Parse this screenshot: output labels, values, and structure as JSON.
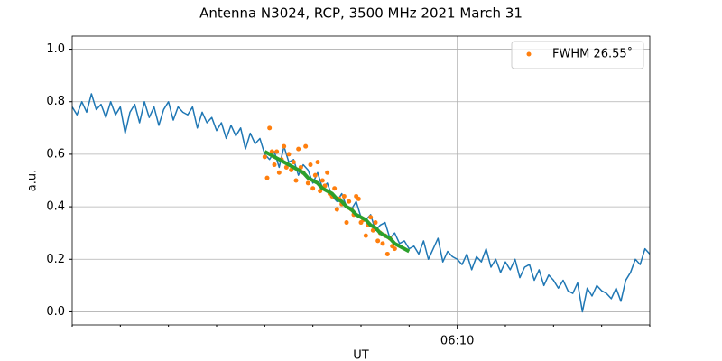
{
  "chart_data": {
    "type": "line",
    "title": "Antenna N3024, RCP, 3500 MHz 2021 March 31",
    "xlabel": "UT",
    "ylabel": "a.u.",
    "xlim": [
      362,
      374
    ],
    "ylim": [
      -0.05,
      1.05
    ],
    "xticks": [
      {
        "value": 370,
        "label": "06:10"
      }
    ],
    "xminorticks": [
      362,
      363,
      364,
      365,
      366,
      367,
      368,
      369,
      371,
      372,
      373,
      374
    ],
    "yticks": [
      {
        "value": 0,
        "label": "0.0"
      },
      0.2,
      0.4,
      0.6,
      0.8,
      {
        "value": 1,
        "label": "1.0"
      }
    ],
    "grid": true,
    "legend": "upper right",
    "series": [
      {
        "mode": "line",
        "color": "#1f77b4",
        "x": [
          362.0,
          362.1,
          362.2,
          362.3,
          362.4,
          362.5,
          362.6,
          362.7,
          362.8,
          362.9,
          363.0,
          363.1,
          363.2,
          363.3,
          363.4,
          363.5,
          363.6,
          363.7,
          363.8,
          363.9,
          364.0,
          364.1,
          364.2,
          364.3,
          364.4,
          364.5,
          364.6,
          364.7,
          364.8,
          364.9,
          365.0,
          365.1,
          365.2,
          365.3,
          365.4,
          365.5,
          365.6,
          365.7,
          365.8,
          365.9,
          366.0,
          366.1,
          366.2,
          366.3,
          366.4,
          366.5,
          366.6,
          366.7,
          366.8,
          366.9,
          367.0,
          367.1,
          367.2,
          367.3,
          367.4,
          367.5,
          367.6,
          367.7,
          367.8,
          367.9,
          368.0,
          368.1,
          368.2,
          368.3,
          368.4,
          368.5,
          368.6,
          368.7,
          368.8,
          368.9,
          369.0,
          369.1,
          369.2,
          369.3,
          369.4,
          369.5,
          369.6,
          369.7,
          369.8,
          369.9,
          370.0,
          370.1,
          370.2,
          370.3,
          370.4,
          370.5,
          370.6,
          370.7,
          370.8,
          370.9,
          371.0,
          371.1,
          371.2,
          371.3,
          371.4,
          371.5,
          371.6,
          371.7,
          371.8,
          371.9,
          372.0,
          372.1,
          372.2,
          372.3,
          372.4,
          372.5,
          372.6,
          372.7,
          372.8,
          372.9,
          373.0,
          373.1,
          373.2,
          373.3,
          373.4,
          373.5,
          373.6,
          373.7,
          373.8,
          373.9,
          374.0
        ],
        "values": [
          0.78,
          0.75,
          0.8,
          0.76,
          0.83,
          0.77,
          0.79,
          0.74,
          0.8,
          0.75,
          0.78,
          0.68,
          0.76,
          0.79,
          0.72,
          0.8,
          0.74,
          0.78,
          0.71,
          0.77,
          0.8,
          0.73,
          0.78,
          0.76,
          0.75,
          0.78,
          0.7,
          0.76,
          0.72,
          0.74,
          0.69,
          0.72,
          0.66,
          0.71,
          0.67,
          0.7,
          0.62,
          0.68,
          0.64,
          0.66,
          0.6,
          0.58,
          0.61,
          0.55,
          0.63,
          0.57,
          0.58,
          0.52,
          0.56,
          0.54,
          0.49,
          0.53,
          0.47,
          0.49,
          0.44,
          0.42,
          0.45,
          0.4,
          0.39,
          0.42,
          0.36,
          0.35,
          0.37,
          0.31,
          0.33,
          0.34,
          0.28,
          0.3,
          0.26,
          0.27,
          0.24,
          0.25,
          0.22,
          0.27,
          0.2,
          0.24,
          0.28,
          0.19,
          0.23,
          0.21,
          0.2,
          0.18,
          0.22,
          0.16,
          0.21,
          0.19,
          0.24,
          0.17,
          0.2,
          0.15,
          0.19,
          0.16,
          0.2,
          0.13,
          0.17,
          0.18,
          0.12,
          0.16,
          0.1,
          0.14,
          0.12,
          0.09,
          0.12,
          0.08,
          0.07,
          0.11,
          0.0,
          0.09,
          0.06,
          0.1,
          0.08,
          0.07,
          0.05,
          0.09,
          0.04,
          0.12,
          0.15,
          0.2,
          0.18,
          0.24,
          0.22
        ]
      },
      {
        "mode": "markers",
        "color": "#ff7f0e",
        "name": "FWHM 26.55˚",
        "x": [
          366.0,
          366.05,
          366.1,
          366.15,
          366.2,
          366.25,
          366.3,
          366.35,
          366.4,
          366.45,
          366.5,
          366.55,
          366.6,
          366.65,
          366.7,
          366.75,
          366.8,
          366.85,
          366.9,
          366.95,
          367.0,
          367.05,
          367.1,
          367.15,
          367.2,
          367.25,
          367.3,
          367.35,
          367.4,
          367.45,
          367.5,
          367.55,
          367.6,
          367.65,
          367.7,
          367.75,
          367.8,
          367.85,
          367.9,
          367.95,
          368.0,
          368.05,
          368.1,
          368.15,
          368.2,
          368.25,
          368.3,
          368.35,
          368.4,
          368.45,
          368.5,
          368.55,
          368.6,
          368.65,
          368.7
        ],
        "values": [
          0.59,
          0.51,
          0.7,
          0.61,
          0.56,
          0.61,
          0.53,
          0.58,
          0.63,
          0.55,
          0.6,
          0.54,
          0.57,
          0.5,
          0.62,
          0.55,
          0.53,
          0.63,
          0.49,
          0.56,
          0.47,
          0.52,
          0.57,
          0.46,
          0.5,
          0.48,
          0.53,
          0.45,
          0.44,
          0.47,
          0.39,
          0.43,
          0.41,
          0.44,
          0.34,
          0.42,
          0.39,
          0.37,
          0.44,
          0.43,
          0.34,
          0.35,
          0.29,
          0.33,
          0.36,
          0.31,
          0.34,
          0.27,
          0.3,
          0.26,
          0.29,
          0.22,
          0.28,
          0.25,
          0.24
        ]
      },
      {
        "mode": "thick-line",
        "color": "#2ca02c",
        "x": [
          366.0,
          366.1,
          366.2,
          366.3,
          366.4,
          366.5,
          366.6,
          366.7,
          366.8,
          366.9,
          367.0,
          367.1,
          367.2,
          367.3,
          367.4,
          367.5,
          367.6,
          367.7,
          367.8,
          367.9,
          368.0,
          368.1,
          368.2,
          368.3,
          368.4,
          368.5,
          368.6,
          368.7,
          368.8,
          368.9,
          369.0
        ],
        "values": [
          0.61,
          0.6,
          0.59,
          0.58,
          0.57,
          0.56,
          0.55,
          0.54,
          0.53,
          0.51,
          0.5,
          0.49,
          0.47,
          0.46,
          0.45,
          0.43,
          0.42,
          0.4,
          0.39,
          0.37,
          0.36,
          0.35,
          0.33,
          0.32,
          0.3,
          0.29,
          0.28,
          0.26,
          0.25,
          0.24,
          0.23
        ]
      }
    ]
  }
}
